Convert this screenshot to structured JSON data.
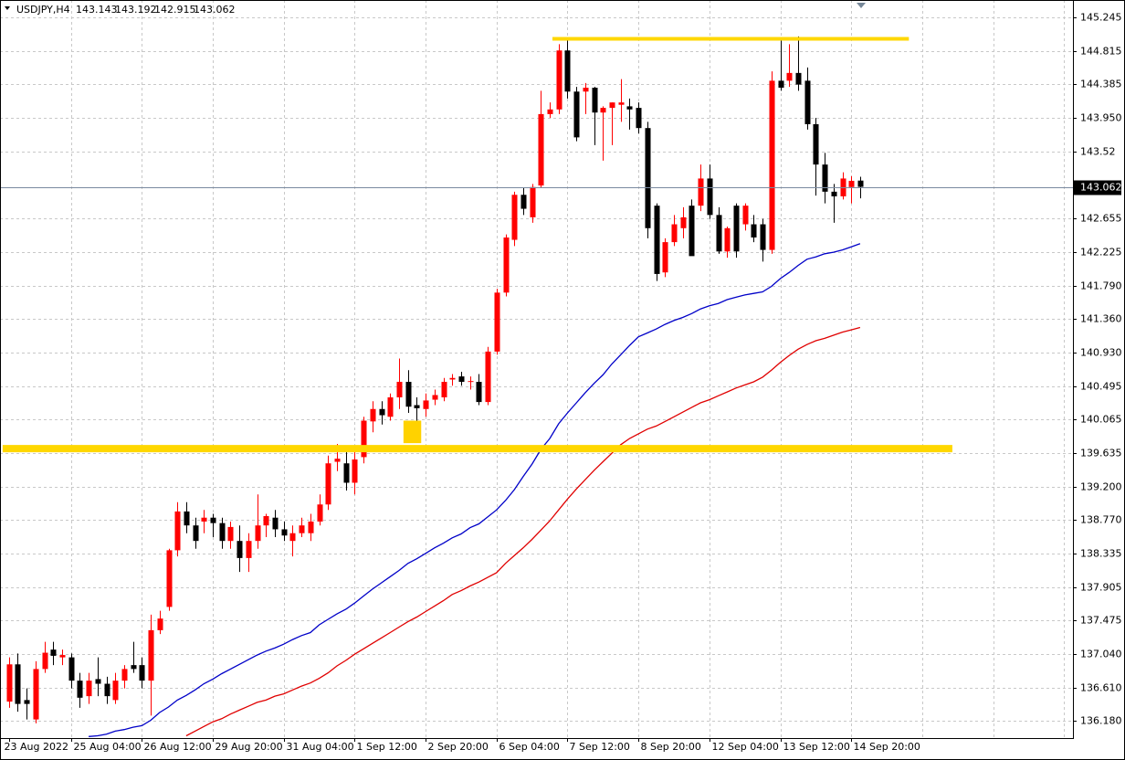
{
  "chart_data": {
    "type": "candlestick",
    "title": "USDJPY,H4",
    "up_color": "#ff0000",
    "down_color": "#000000",
    "grid": true,
    "xlim": [
      -1,
      120
    ],
    "ylim": [
      135.96,
      145.47
    ],
    "yticks": [
      145.245,
      {
        "value": 144.815,
        "label": "144.815"
      },
      144.385,
      {
        "value": 143.95,
        "label": "143.950"
      },
      143.52,
      {
        "value": 142.655,
        "label": "142.655"
      },
      142.225,
      {
        "value": 141.79,
        "label": "141.790"
      },
      {
        "value": 141.36,
        "label": "141.360"
      },
      {
        "value": 140.93,
        "label": "140.930"
      },
      140.495,
      140.065,
      139.635,
      {
        "value": 139.2,
        "label": "139.200"
      },
      {
        "value": 138.77,
        "label": "138.770"
      },
      138.335,
      137.905,
      137.475,
      {
        "value": 137.04,
        "label": "137.040"
      },
      {
        "value": 136.61,
        "label": "136.610"
      },
      {
        "value": 136.18,
        "label": "136.180"
      }
    ],
    "xticks": [
      {
        "value": 0,
        "label": "23 Aug 2022"
      },
      {
        "value": 7,
        "label": "25 Aug 04:00"
      },
      {
        "value": 15,
        "label": "26 Aug 12:00"
      },
      {
        "value": 23,
        "label": "29 Aug 20:00"
      },
      {
        "value": 31,
        "label": "31 Aug 04:00"
      },
      {
        "value": 39,
        "label": "1 Sep 12:00"
      },
      {
        "value": 47,
        "label": "2 Sep 20:00"
      },
      {
        "value": 55,
        "label": "6 Sep 04:00"
      },
      {
        "value": 63,
        "label": "7 Sep 12:00"
      },
      {
        "value": 71,
        "label": "8 Sep 20:00"
      },
      {
        "value": 79,
        "label": "12 Sep 04:00"
      },
      {
        "value": 87,
        "label": "13 Sep 12:00"
      },
      {
        "value": 95,
        "label": "14 Sep 20:00"
      }
    ],
    "open": [
      136.43,
      136.91,
      136.45,
      136.2,
      136.85,
      137.1,
      137.0,
      137.0,
      136.7,
      136.5,
      136.72,
      136.66,
      136.45,
      136.7,
      136.9,
      136.9,
      136.7,
      137.35,
      137.65,
      138.38,
      138.88,
      138.7,
      138.75,
      138.8,
      138.73,
      138.5,
      138.5,
      138.28,
      138.5,
      138.7,
      138.8,
      138.65,
      138.5,
      138.6,
      138.6,
      138.75,
      138.97,
      139.52,
      139.5,
      139.25,
      139.58,
      140.04,
      140.2,
      140.1,
      140.35,
      140.55,
      140.25,
      140.2,
      140.32,
      140.35,
      140.58,
      140.62,
      140.55,
      140.55,
      140.29,
      140.94,
      141.7,
      142.38,
      142.96,
      142.67,
      143.08,
      144.0,
      144.06,
      144.82,
      144.29,
      144.29,
      144.34,
      144.02,
      144.08,
      144.12,
      144.1,
      144.08,
      143.82,
      142.82,
      141.96,
      142.35,
      142.53,
      142.82,
      142.82,
      143.17,
      142.7,
      142.23,
      142.82,
      142.58,
      142.58,
      142.58,
      142.25,
      144.43,
      144.43,
      144.53,
      144.43,
      143.87,
      143.35,
      143.0,
      142.94,
      143.06,
      143.143
    ],
    "high": [
      137.0,
      137.05,
      136.6,
      136.95,
      137.2,
      137.2,
      137.1,
      137.05,
      136.8,
      136.8,
      137.0,
      136.75,
      136.8,
      136.9,
      137.2,
      137.0,
      137.55,
      137.6,
      138.4,
      139.0,
      139.0,
      138.8,
      138.9,
      138.85,
      138.8,
      138.75,
      138.7,
      138.6,
      139.1,
      138.85,
      138.9,
      138.75,
      138.7,
      138.8,
      138.85,
      139.1,
      139.6,
      139.75,
      139.7,
      139.7,
      140.1,
      140.3,
      140.3,
      140.4,
      140.85,
      140.7,
      140.35,
      140.4,
      140.45,
      140.6,
      140.65,
      140.68,
      140.62,
      140.65,
      141.0,
      141.75,
      142.45,
      143.0,
      143.05,
      143.1,
      144.3,
      144.15,
      144.9,
      144.95,
      144.35,
      144.4,
      144.35,
      144.1,
      144.15,
      144.45,
      144.2,
      144.15,
      143.9,
      142.85,
      142.4,
      142.7,
      142.8,
      142.9,
      143.35,
      143.35,
      142.8,
      142.55,
      142.85,
      142.85,
      142.7,
      142.65,
      144.55,
      144.95,
      144.9,
      145.0,
      144.6,
      143.95,
      143.5,
      143.1,
      143.25,
      143.2,
      143.192
    ],
    "low": [
      136.35,
      136.3,
      136.2,
      136.15,
      136.8,
      136.9,
      136.9,
      136.6,
      136.35,
      136.4,
      136.5,
      136.4,
      136.4,
      136.6,
      136.8,
      136.6,
      136.25,
      137.3,
      137.6,
      138.3,
      138.6,
      138.4,
      138.6,
      138.55,
      138.4,
      138.4,
      138.1,
      138.1,
      138.4,
      138.55,
      138.55,
      138.5,
      138.3,
      138.55,
      138.5,
      138.7,
      138.9,
      139.4,
      139.15,
      139.1,
      139.5,
      139.9,
      140.0,
      140.05,
      140.2,
      140.15,
      140.05,
      140.1,
      140.25,
      140.3,
      140.5,
      140.5,
      140.45,
      140.25,
      140.25,
      140.9,
      141.65,
      142.3,
      142.7,
      142.6,
      143.05,
      143.95,
      144.0,
      144.2,
      143.65,
      144.0,
      143.6,
      143.4,
      143.6,
      143.9,
      143.8,
      143.75,
      142.4,
      141.85,
      141.9,
      142.3,
      142.4,
      142.2,
      142.75,
      142.65,
      142.2,
      142.15,
      142.15,
      142.5,
      142.35,
      142.1,
      142.2,
      144.3,
      144.35,
      144.3,
      143.8,
      142.95,
      142.85,
      142.6,
      142.9,
      142.85,
      142.915
    ],
    "close": [
      136.91,
      136.4,
      136.4,
      136.85,
      137.06,
      137.02,
      137.03,
      136.7,
      136.48,
      136.7,
      136.66,
      136.5,
      136.7,
      136.85,
      136.85,
      136.7,
      137.35,
      137.5,
      138.38,
      138.88,
      138.7,
      138.5,
      138.8,
      138.73,
      138.5,
      138.68,
      138.28,
      138.5,
      138.7,
      138.82,
      138.65,
      138.57,
      138.6,
      138.7,
      138.75,
      138.97,
      139.5,
      139.56,
      139.25,
      139.55,
      140.05,
      140.2,
      140.12,
      140.35,
      140.55,
      140.23,
      140.21,
      140.31,
      140.38,
      140.55,
      140.6,
      140.55,
      140.56,
      140.29,
      140.94,
      141.7,
      142.41,
      142.96,
      142.78,
      143.06,
      144.0,
      144.06,
      144.82,
      144.29,
      143.7,
      144.34,
      144.02,
      144.08,
      144.15,
      144.15,
      144.06,
      143.82,
      142.53,
      141.94,
      142.35,
      142.58,
      142.67,
      142.17,
      143.17,
      142.7,
      142.23,
      142.53,
      142.23,
      142.82,
      142.41,
      142.25,
      144.43,
      144.34,
      144.53,
      144.38,
      143.87,
      143.35,
      143.0,
      142.94,
      143.17,
      143.14,
      143.062
    ],
    "overlays": [
      {
        "color": "#0000c8",
        "values": [
          null,
          null,
          null,
          null,
          null,
          null,
          null,
          null,
          null,
          135.98,
          135.99,
          136.01,
          136.05,
          136.07,
          136.1,
          136.12,
          136.19,
          136.29,
          136.36,
          136.45,
          136.51,
          136.58,
          136.66,
          136.72,
          136.79,
          136.85,
          136.91,
          136.97,
          137.03,
          137.08,
          137.12,
          137.17,
          137.23,
          137.28,
          137.32,
          137.42,
          137.49,
          137.56,
          137.62,
          137.7,
          137.79,
          137.88,
          137.96,
          138.04,
          138.12,
          138.21,
          138.27,
          138.34,
          138.41,
          138.47,
          138.54,
          138.59,
          138.67,
          138.72,
          138.81,
          138.9,
          139.02,
          139.16,
          139.33,
          139.49,
          139.68,
          139.82,
          140.01,
          140.15,
          140.28,
          140.41,
          140.53,
          140.64,
          140.78,
          140.9,
          141.02,
          141.13,
          141.18,
          141.23,
          141.29,
          141.34,
          141.38,
          141.43,
          141.49,
          141.53,
          141.56,
          141.61,
          141.64,
          141.67,
          141.69,
          141.71,
          141.78,
          141.88,
          141.96,
          142.05,
          142.13,
          142.16,
          142.2,
          142.22,
          142.25,
          142.29,
          142.33
        ]
      },
      {
        "color": "#e00000",
        "values": [
          null,
          null,
          null,
          null,
          null,
          null,
          null,
          null,
          null,
          null,
          null,
          null,
          null,
          null,
          null,
          null,
          null,
          null,
          null,
          null,
          135.99,
          136.05,
          136.11,
          136.17,
          136.21,
          136.27,
          136.32,
          136.37,
          136.42,
          136.45,
          136.5,
          136.53,
          136.58,
          136.63,
          136.67,
          136.73,
          136.8,
          136.89,
          136.96,
          137.04,
          137.11,
          137.18,
          137.25,
          137.32,
          137.39,
          137.46,
          137.52,
          137.59,
          137.66,
          137.73,
          137.81,
          137.86,
          137.92,
          137.97,
          138.03,
          138.09,
          138.21,
          138.31,
          138.41,
          138.52,
          138.64,
          138.76,
          138.9,
          139.04,
          139.17,
          139.29,
          139.41,
          139.52,
          139.63,
          139.74,
          139.82,
          139.88,
          139.94,
          139.98,
          140.04,
          140.1,
          140.16,
          140.22,
          140.28,
          140.32,
          140.37,
          140.42,
          140.47,
          140.51,
          140.55,
          140.61,
          140.7,
          140.8,
          140.89,
          140.97,
          141.03,
          141.08,
          141.11,
          141.15,
          141.19,
          141.22,
          141.25
        ]
      }
    ],
    "hlines": [
      {
        "value": 144.97,
        "from": 61.3,
        "to": 101.5,
        "color": "#ffd700"
      },
      {
        "value": 139.69,
        "from": -0.7,
        "to": 106.4,
        "color": "#ffd700"
      }
    ],
    "highlight": {
      "from": 44.5,
      "to": 46.5,
      "top": 140.05,
      "bottom": 139.76,
      "color": "#ffd200"
    }
  }
}
